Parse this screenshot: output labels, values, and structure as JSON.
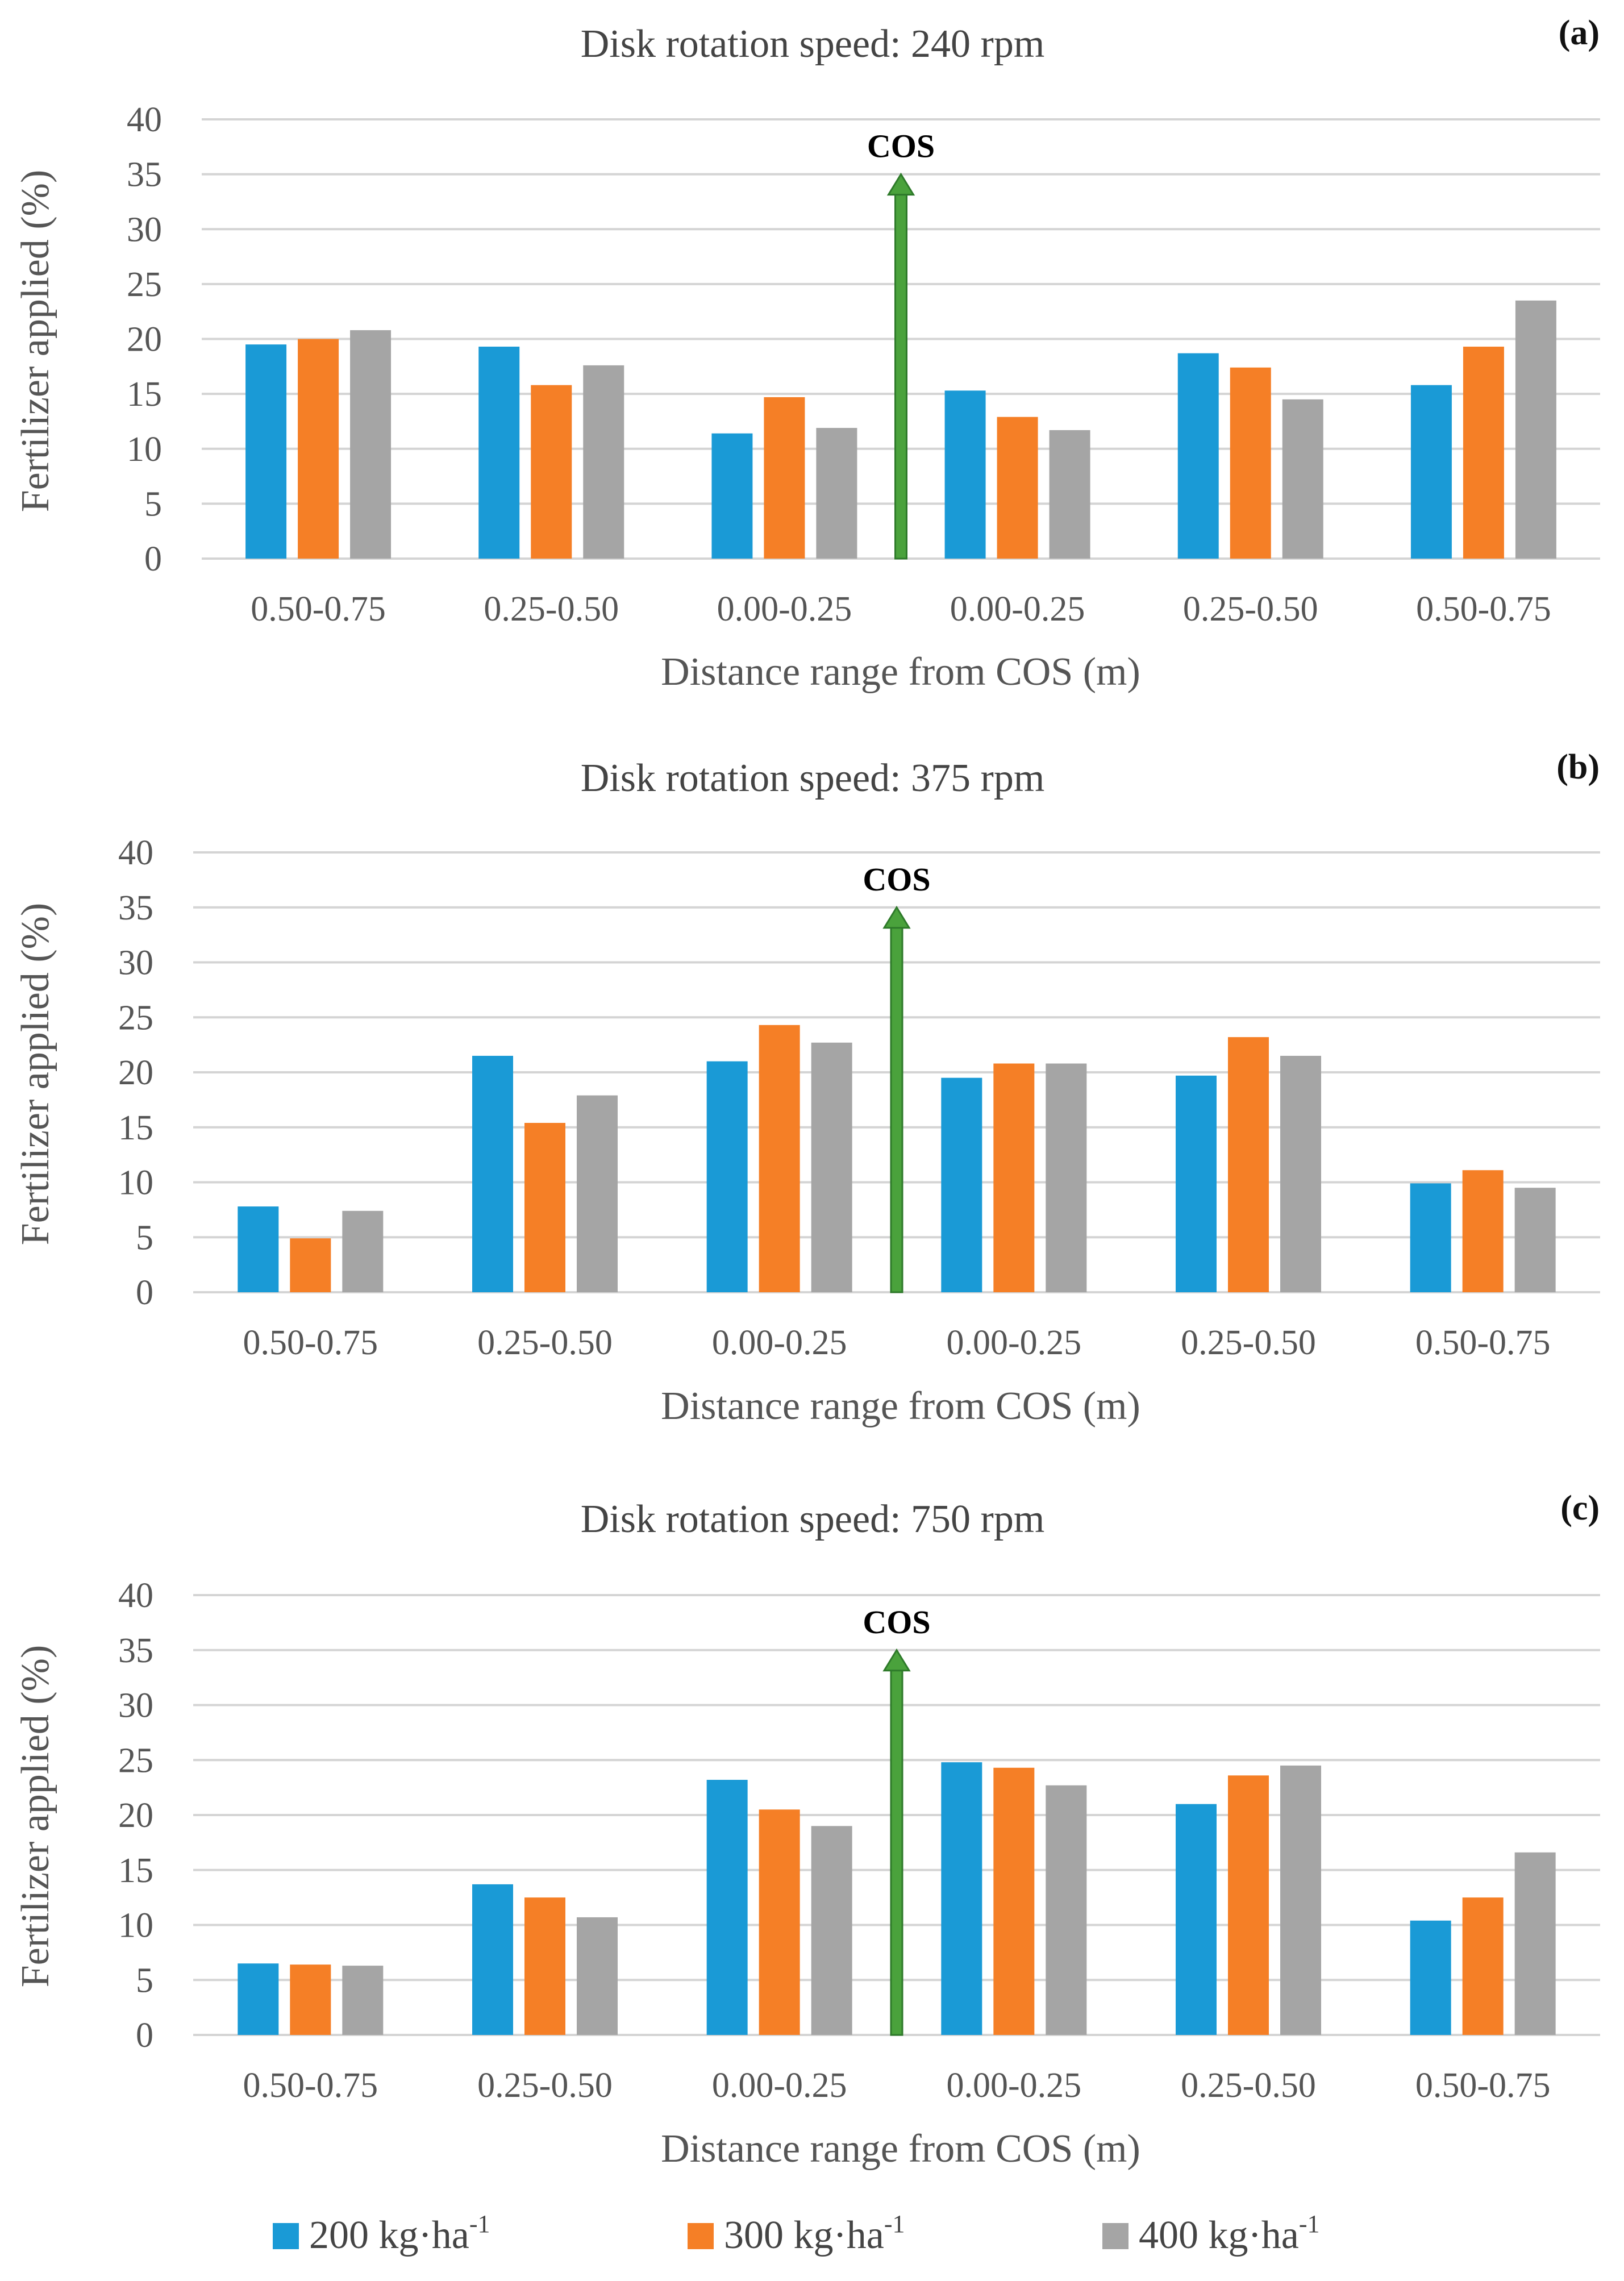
{
  "chart_data": [
    {
      "type": "bar",
      "panel_label": "(a)",
      "title": "Disk rotation speed: 240 rpm",
      "xlabel": "Distance range from COS (m)",
      "ylabel": "Fertilizer applied (%)",
      "ylim": [
        0,
        40
      ],
      "yticks": [
        "0",
        "5",
        "10",
        "15",
        "20",
        "25",
        "30",
        "35",
        "40"
      ],
      "categories": [
        "0.50-0.75",
        "0.25-0.50",
        "0.00-0.25",
        "0.00-0.25",
        "0.25-0.50",
        "0.50-0.75"
      ],
      "marker": {
        "label": "COS",
        "value": 35
      },
      "series": [
        {
          "name": "200 kg·ha-1",
          "values": [
            19.5,
            19.3,
            11.4,
            15.3,
            18.7,
            15.8
          ]
        },
        {
          "name": "300 kg·ha-1",
          "values": [
            20.0,
            15.8,
            14.7,
            12.9,
            17.4,
            19.3
          ]
        },
        {
          "name": "400 kg·ha-1",
          "values": [
            20.8,
            17.6,
            11.9,
            11.7,
            14.5,
            23.5
          ]
        }
      ]
    },
    {
      "type": "bar",
      "panel_label": "(b)",
      "title": "Disk rotation speed: 375 rpm",
      "xlabel": "Distance range from COS (m)",
      "ylabel": "Fertilizer applied (%)",
      "ylim": [
        0,
        40
      ],
      "yticks": [
        "0",
        "5",
        "10",
        "15",
        "20",
        "25",
        "30",
        "35",
        "40"
      ],
      "categories": [
        "0.50-0.75",
        "0.25-0.50",
        "0.00-0.25",
        "0.00-0.25",
        "0.25-0.50",
        "0.50-0.75"
      ],
      "marker": {
        "label": "COS",
        "value": 35
      },
      "series": [
        {
          "name": "200 kg·ha-1",
          "values": [
            7.8,
            21.5,
            21.0,
            19.5,
            19.7,
            9.9
          ]
        },
        {
          "name": "300 kg·ha-1",
          "values": [
            4.9,
            15.4,
            24.3,
            20.8,
            23.2,
            11.1
          ]
        },
        {
          "name": "400 kg·ha-1",
          "values": [
            7.4,
            17.9,
            22.7,
            20.8,
            21.5,
            9.5
          ]
        }
      ]
    },
    {
      "type": "bar",
      "panel_label": "(c)",
      "title": "Disk rotation speed: 750 rpm",
      "xlabel": "Distance range from COS (m)",
      "ylabel": "Fertilizer applied (%)",
      "ylim": [
        0,
        40
      ],
      "yticks": [
        "0",
        "5",
        "10",
        "15",
        "20",
        "25",
        "30",
        "35",
        "40"
      ],
      "categories": [
        "0.50-0.75",
        "0.25-0.50",
        "0.00-0.25",
        "0.00-0.25",
        "0.25-0.50",
        "0.50-0.75"
      ],
      "marker": {
        "label": "COS",
        "value": 35
      },
      "series": [
        {
          "name": "200 kg·ha-1",
          "values": [
            6.5,
            13.7,
            23.2,
            24.8,
            21.0,
            10.4
          ]
        },
        {
          "name": "300 kg·ha-1",
          "values": [
            6.4,
            12.5,
            20.5,
            24.3,
            23.6,
            12.5
          ]
        },
        {
          "name": "400 kg·ha-1",
          "values": [
            6.3,
            10.7,
            19.0,
            22.7,
            24.5,
            16.6
          ]
        }
      ]
    }
  ],
  "legend": {
    "position": "bottom",
    "entries": [
      {
        "base": "200 kg·ha",
        "sup": "-1",
        "color": "#1a9ad6"
      },
      {
        "base": "300 kg·ha",
        "sup": "-1",
        "color": "#f57f26"
      },
      {
        "base": "400 kg·ha",
        "sup": "-1",
        "color": "#a5a5a5"
      }
    ]
  },
  "colors": {
    "series": [
      "#1a9ad6",
      "#f57f26",
      "#a5a5a5"
    ],
    "cos_arrow": "#4aa23c",
    "cos_arrow_edge": "#2e7a2a"
  }
}
